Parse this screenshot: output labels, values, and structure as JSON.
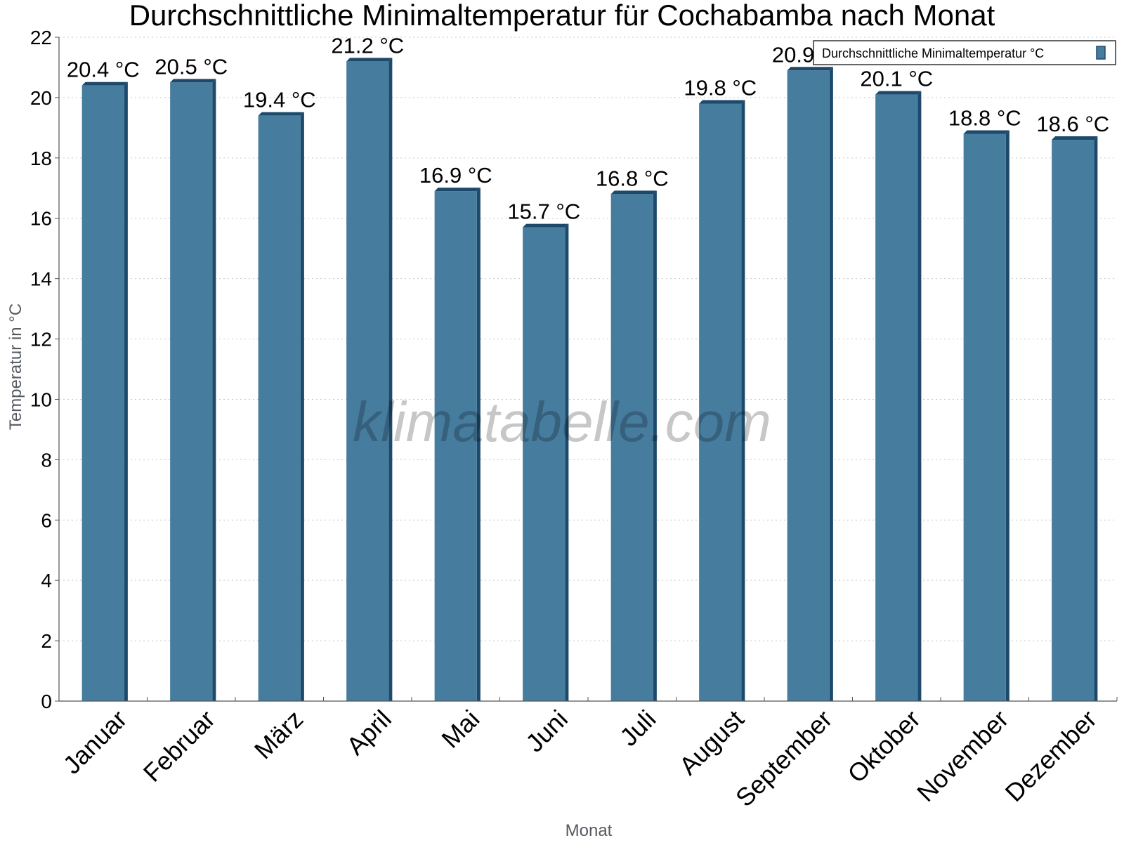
{
  "colors": {
    "bar": "#467c9e",
    "bar_side": "#1d4a6b",
    "grid": "#c8c8c8",
    "axis": "#555555"
  },
  "watermark": "klimatabelle.com",
  "chart_data": {
    "type": "bar",
    "title": "Durchschnittliche Minimaltemperatur für Cochabamba nach Monat",
    "xlabel": "Monat",
    "ylabel": "Temperatur in °C",
    "ylim": [
      0,
      22
    ],
    "yticks": [
      "0",
      "2",
      "4",
      "6",
      "8",
      "10",
      "12",
      "14",
      "16",
      "18",
      "20",
      "22"
    ],
    "grid": "horizontal dotted",
    "legend_position": "top-right",
    "categories": [
      "Januar",
      "Februar",
      "März",
      "April",
      "Mai",
      "Juni",
      "Juli",
      "August",
      "September",
      "Oktober",
      "November",
      "Dezember"
    ],
    "series": [
      {
        "name": "Durchschnittliche Minimaltemperatur °C",
        "values": [
          20.4,
          20.5,
          19.4,
          21.2,
          16.9,
          15.7,
          16.8,
          19.8,
          20.9,
          20.1,
          18.8,
          18.6
        ],
        "labels": [
          "20.4 °C",
          "20.5 °C",
          "19.4 °C",
          "21.2 °C",
          "16.9 °C",
          "15.7 °C",
          "16.8 °C",
          "19.8 °C",
          "20.9 °C",
          "20.1 °C",
          "18.8 °C",
          "18.6 °C"
        ]
      }
    ]
  }
}
